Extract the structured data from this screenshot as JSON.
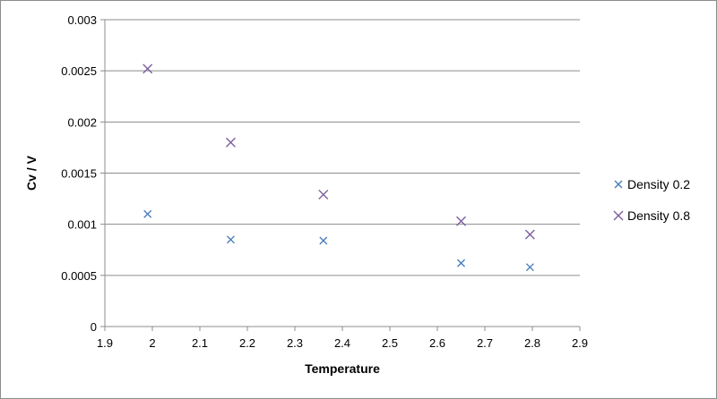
{
  "chart_data": {
    "type": "scatter",
    "xlabel": "Temperature",
    "ylabel": "Cv / V",
    "xlim": [
      1.9,
      2.9
    ],
    "ylim": [
      0,
      0.003
    ],
    "xticks": [
      "1.9",
      "2",
      "2.1",
      "2.2",
      "2.3",
      "2.4",
      "2.5",
      "2.6",
      "2.7",
      "2.8",
      "2.9"
    ],
    "yticks": [
      "0",
      "0.0005",
      "0.001",
      "0.0015",
      "0.002",
      "0.0025",
      "0.003"
    ],
    "grid": "horizontal",
    "legend_position": "right",
    "series": [
      {
        "name": "Density 0.2",
        "color": "#4a7ebb",
        "marker": "x",
        "points": [
          {
            "x": 1.99,
            "y": 0.0011
          },
          {
            "x": 2.165,
            "y": 0.00085
          },
          {
            "x": 2.36,
            "y": 0.00084
          },
          {
            "x": 2.65,
            "y": 0.00062
          },
          {
            "x": 2.795,
            "y": 0.00058
          }
        ]
      },
      {
        "name": "Density 0.8",
        "color": "#7d5fa0",
        "marker": "x",
        "points": [
          {
            "x": 1.99,
            "y": 0.00252
          },
          {
            "x": 2.165,
            "y": 0.0018
          },
          {
            "x": 2.36,
            "y": 0.00129
          },
          {
            "x": 2.65,
            "y": 0.00103
          },
          {
            "x": 2.795,
            "y": 0.0009
          }
        ]
      }
    ]
  }
}
